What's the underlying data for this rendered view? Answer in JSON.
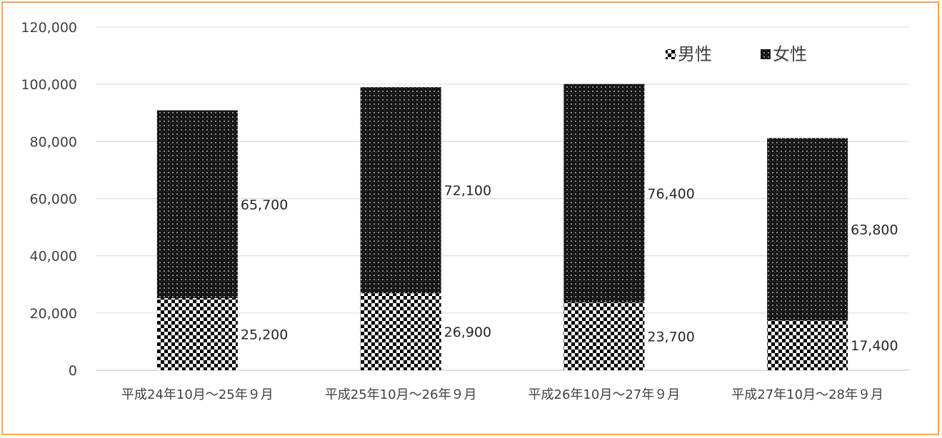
{
  "chart_data": {
    "type": "bar",
    "stacked": true,
    "categories": [
      "平成24年10月～25年９月",
      "平成25年10月～26年９月",
      "平成26年10月～27年９月",
      "平成27年10月～28年９月"
    ],
    "series": [
      {
        "name": "男性",
        "values": [
          25200,
          26900,
          23700,
          17400
        ],
        "pattern": "checker"
      },
      {
        "name": "女性",
        "values": [
          65700,
          72100,
          76400,
          63800
        ],
        "pattern": "dark-dots"
      }
    ],
    "data_labels": {
      "男性": [
        "25,200",
        "26,900",
        "23,700",
        "17,400"
      ],
      "女性": [
        "65,700",
        "72,100",
        "76,400",
        "63,800"
      ]
    },
    "y_ticks": [
      "0",
      "20,000",
      "40,000",
      "60,000",
      "80,000",
      "100,000",
      "120,000"
    ],
    "ylim": [
      0,
      120000
    ],
    "grid": true,
    "legend_position": "top-right",
    "colors": {
      "frame": "#f4a55a",
      "grid": "#d9d9d9",
      "text": "#404040"
    }
  }
}
